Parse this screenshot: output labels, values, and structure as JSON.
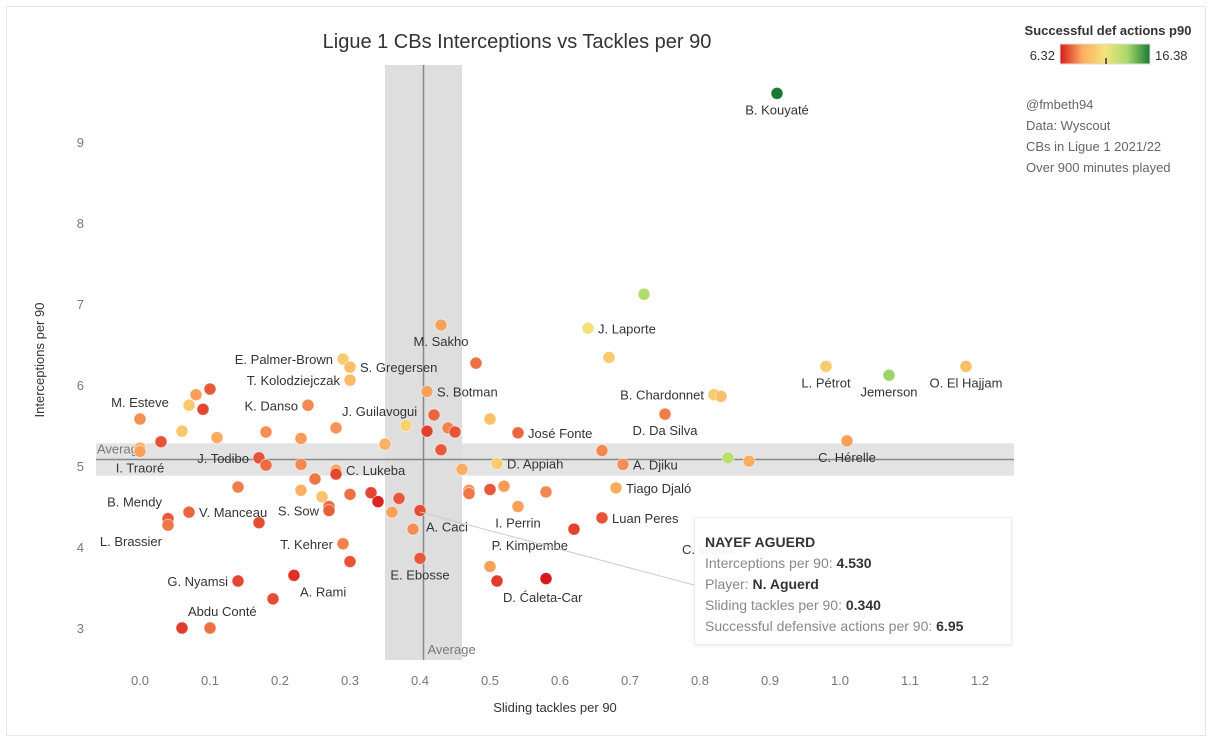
{
  "chart_data": {
    "type": "scatter",
    "title": "Ligue 1 CBs Interceptions vs Tackles per 90",
    "xlabel": "Sliding tackles per 90",
    "ylabel": "Interceptions per 90",
    "xlim": [
      -0.05,
      1.25
    ],
    "ylim": [
      2.7,
      9.85
    ],
    "xticks": [
      "0.0",
      "0.1",
      "0.2",
      "0.3",
      "0.4",
      "0.5",
      "0.6",
      "0.7",
      "0.8",
      "0.9",
      "1.0",
      "1.1",
      "1.2"
    ],
    "yticks": [
      "3",
      "4",
      "5",
      "6",
      "7",
      "8",
      "9"
    ],
    "averages": {
      "x": 0.405,
      "y": 5.08,
      "x_label": "Average",
      "y_label": "Average",
      "x_band": [
        0.35,
        0.46
      ],
      "y_band": [
        4.88,
        5.28
      ]
    },
    "color_scale": {
      "title": "Successful def actions p90",
      "min": 6.32,
      "max": 16.38,
      "min_label": "6.32",
      "max_label": "16.38",
      "colors": [
        "#d7191c",
        "#fdae61",
        "#f5e47a",
        "#a6d96a",
        "#1a7837"
      ]
    },
    "points": [
      {
        "name": "B. Kouyaté",
        "x": 0.91,
        "y": 9.6,
        "c": 16.38,
        "label_pos": "below"
      },
      {
        "name": "",
        "x": 0.72,
        "y": 7.12,
        "c": 13.5
      },
      {
        "name": "J. Laporte",
        "x": 0.64,
        "y": 6.7,
        "c": 11.2,
        "label_pos": "right"
      },
      {
        "name": "",
        "x": 0.67,
        "y": 6.34,
        "c": 10.2
      },
      {
        "name": "M. Sakho",
        "x": 0.43,
        "y": 6.74,
        "c": 8.6,
        "label_pos": "below"
      },
      {
        "name": "",
        "x": 0.48,
        "y": 6.27,
        "c": 7.8
      },
      {
        "name": "E. Palmer-Brown",
        "x": 0.29,
        "y": 6.32,
        "c": 10.2,
        "label_pos": "left"
      },
      {
        "name": "S. Gregersen",
        "x": 0.3,
        "y": 6.22,
        "c": 9.6,
        "label_pos": "right"
      },
      {
        "name": "T. Kolodziejczak",
        "x": 0.3,
        "y": 6.06,
        "c": 9.4,
        "label_pos": "left"
      },
      {
        "name": "S. Botman",
        "x": 0.41,
        "y": 5.92,
        "c": 8.6,
        "label_pos": "right"
      },
      {
        "name": "M. Esteve",
        "x": 0.0,
        "y": 5.58,
        "c": 8.3,
        "label_pos": "above"
      },
      {
        "name": "K. Danso",
        "x": 0.24,
        "y": 5.75,
        "c": 8.2,
        "label_pos": "left"
      },
      {
        "name": "J. Guilavogui",
        "x": 0.28,
        "y": 5.47,
        "c": 8.4,
        "label_pos": "above-right"
      },
      {
        "name": "",
        "x": 0.08,
        "y": 5.88,
        "c": 8.6
      },
      {
        "name": "",
        "x": 0.1,
        "y": 5.95,
        "c": 7.4
      },
      {
        "name": "",
        "x": 0.07,
        "y": 5.75,
        "c": 10.1
      },
      {
        "name": "",
        "x": 0.09,
        "y": 5.7,
        "c": 7.1
      },
      {
        "name": "",
        "x": 0.06,
        "y": 5.43,
        "c": 10.0
      },
      {
        "name": "",
        "x": 0.11,
        "y": 5.35,
        "c": 8.8
      },
      {
        "name": "",
        "x": 0.18,
        "y": 5.42,
        "c": 8.3
      },
      {
        "name": "",
        "x": 0.23,
        "y": 5.34,
        "c": 8.5
      },
      {
        "name": "",
        "x": 0.03,
        "y": 5.3,
        "c": 7.3
      },
      {
        "name": "",
        "x": 0.0,
        "y": 5.22,
        "c": 9.0
      },
      {
        "name": "I. Traoré",
        "x": 0.0,
        "y": 5.18,
        "c": 8.6,
        "label_pos": "below"
      },
      {
        "name": "J. Todibo",
        "x": 0.17,
        "y": 5.1,
        "c": 7.3,
        "label_pos": "left"
      },
      {
        "name": "",
        "x": 0.18,
        "y": 5.01,
        "c": 7.7
      },
      {
        "name": "",
        "x": 0.23,
        "y": 5.02,
        "c": 8.2
      },
      {
        "name": "C. Lukeba",
        "x": 0.28,
        "y": 4.95,
        "c": 8.8,
        "label_pos": "right"
      },
      {
        "name": "",
        "x": 0.28,
        "y": 4.9,
        "c": 7.1
      },
      {
        "name": "",
        "x": 0.25,
        "y": 4.84,
        "c": 7.9
      },
      {
        "name": "",
        "x": 0.14,
        "y": 4.74,
        "c": 8.0
      },
      {
        "name": "",
        "x": 0.23,
        "y": 4.7,
        "c": 8.9
      },
      {
        "name": "",
        "x": 0.26,
        "y": 4.62,
        "c": 9.8
      },
      {
        "name": "",
        "x": 0.3,
        "y": 4.65,
        "c": 7.8
      },
      {
        "name": "",
        "x": 0.27,
        "y": 4.5,
        "c": 7.7
      },
      {
        "name": "",
        "x": 0.33,
        "y": 4.67,
        "c": 7.1
      },
      {
        "name": "",
        "x": 0.34,
        "y": 4.56,
        "c": 6.5
      },
      {
        "name": "",
        "x": 0.36,
        "y": 4.43,
        "c": 8.6
      },
      {
        "name": "",
        "x": 0.37,
        "y": 4.6,
        "c": 7.4
      },
      {
        "name": "S. Sow",
        "x": 0.27,
        "y": 4.45,
        "c": 7.5,
        "label_pos": "left"
      },
      {
        "name": "B. Mendy",
        "x": 0.04,
        "y": 4.35,
        "c": 7.4,
        "label_pos": "above-left"
      },
      {
        "name": "V. Manceau",
        "x": 0.07,
        "y": 4.43,
        "c": 7.6,
        "label_pos": "right"
      },
      {
        "name": "L. Brassier",
        "x": 0.04,
        "y": 4.27,
        "c": 7.9,
        "label_pos": "below-left"
      },
      {
        "name": "",
        "x": 0.17,
        "y": 4.3,
        "c": 7.2
      },
      {
        "name": "T. Kehrer",
        "x": 0.29,
        "y": 4.04,
        "c": 8.1,
        "label_pos": "left"
      },
      {
        "name": "",
        "x": 0.3,
        "y": 3.82,
        "c": 7.3
      },
      {
        "name": "",
        "x": 0.35,
        "y": 5.27,
        "c": 8.9
      },
      {
        "name": "",
        "x": 0.38,
        "y": 5.5,
        "c": 10.4
      },
      {
        "name": "",
        "x": 0.41,
        "y": 5.43,
        "c": 7.0
      },
      {
        "name": "",
        "x": 0.42,
        "y": 5.63,
        "c": 7.6
      },
      {
        "name": "",
        "x": 0.44,
        "y": 5.47,
        "c": 8.1
      },
      {
        "name": "",
        "x": 0.45,
        "y": 5.42,
        "c": 7.3
      },
      {
        "name": "",
        "x": 0.43,
        "y": 5.2,
        "c": 7.4
      },
      {
        "name": "",
        "x": 0.46,
        "y": 4.96,
        "c": 8.8
      },
      {
        "name": "",
        "x": 0.5,
        "y": 5.58,
        "c": 9.7
      },
      {
        "name": "José Fonte",
        "x": 0.54,
        "y": 5.41,
        "c": 7.6,
        "label_pos": "right"
      },
      {
        "name": "D. Appiah",
        "x": 0.51,
        "y": 5.03,
        "c": 10.3,
        "label_pos": "right"
      },
      {
        "name": "",
        "x": 0.47,
        "y": 4.7,
        "c": 8.4
      },
      {
        "name": "",
        "x": 0.47,
        "y": 4.66,
        "c": 7.9
      },
      {
        "name": "",
        "x": 0.5,
        "y": 4.71,
        "c": 7.4
      },
      {
        "name": "",
        "x": 0.52,
        "y": 4.75,
        "c": 8.5
      },
      {
        "name": "I. Perrin",
        "x": 0.54,
        "y": 4.5,
        "c": 8.6,
        "label_pos": "below"
      },
      {
        "name": "",
        "x": 0.58,
        "y": 4.68,
        "c": 8.2
      },
      {
        "name": "A. Caci",
        "x": 0.4,
        "y": 4.45,
        "c": 7.2,
        "label_pos": "below-right"
      },
      {
        "name": "",
        "x": 0.39,
        "y": 4.22,
        "c": 8.3
      },
      {
        "name": "E. Ebosse",
        "x": 0.4,
        "y": 3.86,
        "c": 7.4,
        "label_pos": "below"
      },
      {
        "name": "",
        "x": 0.5,
        "y": 3.76,
        "c": 8.6
      },
      {
        "name": "D. Ćaleta-Car",
        "x": 0.51,
        "y": 3.58,
        "c": 6.9,
        "label_pos": "below-right"
      },
      {
        "name": "",
        "x": 0.58,
        "y": 3.61,
        "c": 6.32
      },
      {
        "name": "P. Kimpembe",
        "x": 0.62,
        "y": 4.22,
        "c": 7.0,
        "label_pos": "below-left"
      },
      {
        "name": "Luan Peres",
        "x": 0.66,
        "y": 4.36,
        "c": 7.3,
        "label_pos": "right"
      },
      {
        "name": "Tiago Djaló",
        "x": 0.68,
        "y": 4.73,
        "c": 8.8,
        "label_pos": "right"
      },
      {
        "name": "A. Djiku",
        "x": 0.69,
        "y": 5.02,
        "c": 8.3,
        "label_pos": "right"
      },
      {
        "name": "",
        "x": 0.66,
        "y": 5.19,
        "c": 8.2
      },
      {
        "name": "D. Da Silva",
        "x": 0.75,
        "y": 5.64,
        "c": 8.0,
        "label_pos": "below"
      },
      {
        "name": "B. Chardonnet",
        "x": 0.82,
        "y": 5.88,
        "c": 10.1,
        "label_pos": "left"
      },
      {
        "name": "",
        "x": 0.83,
        "y": 5.86,
        "c": 9.6
      },
      {
        "name": "",
        "x": 0.84,
        "y": 5.1,
        "c": 13.2
      },
      {
        "name": "",
        "x": 0.87,
        "y": 5.06,
        "c": 8.8
      },
      {
        "name": "C. Hérelle",
        "x": 1.01,
        "y": 5.31,
        "c": 8.6,
        "label_pos": "below"
      },
      {
        "name": "L. Pétrot",
        "x": 0.98,
        "y": 6.23,
        "c": 10.2,
        "label_pos": "below"
      },
      {
        "name": "Jemerson",
        "x": 1.07,
        "y": 6.12,
        "c": 14.0,
        "label_pos": "below"
      },
      {
        "name": "O. El Hajjam",
        "x": 1.18,
        "y": 6.23,
        "c": 9.6,
        "label_pos": "below"
      },
      {
        "name": "G. Nyamsi",
        "x": 0.14,
        "y": 3.58,
        "c": 7.1,
        "label_pos": "left"
      },
      {
        "name": "A. Rami",
        "x": 0.22,
        "y": 3.65,
        "c": 6.7,
        "label_pos": "below-right"
      },
      {
        "name": "",
        "x": 0.19,
        "y": 3.36,
        "c": 7.2
      },
      {
        "name": "Abdu Conté",
        "x": 0.06,
        "y": 3.0,
        "c": 6.9,
        "label_pos": "above-right"
      },
      {
        "name": "",
        "x": 0.1,
        "y": 3.0,
        "c": 7.8
      }
    ],
    "hidden_label": "C. Weah"
  },
  "annotations": {
    "credit": "@fmbeth94",
    "source": "Data: Wyscout",
    "scope": "CBs in Ligue 1 2021/22",
    "filter": "Over 900 minutes played"
  },
  "tooltip": {
    "title": "NAYEF AGUERD",
    "rows": [
      {
        "label": "Interceptions per 90: ",
        "value": "4.530"
      },
      {
        "label": "Player: ",
        "value": "N. Aguerd"
      },
      {
        "label": "Sliding tackles per 90: ",
        "value": "0.340"
      },
      {
        "label": "Successful defensive actions per 90: ",
        "value": "6.95"
      }
    ]
  }
}
